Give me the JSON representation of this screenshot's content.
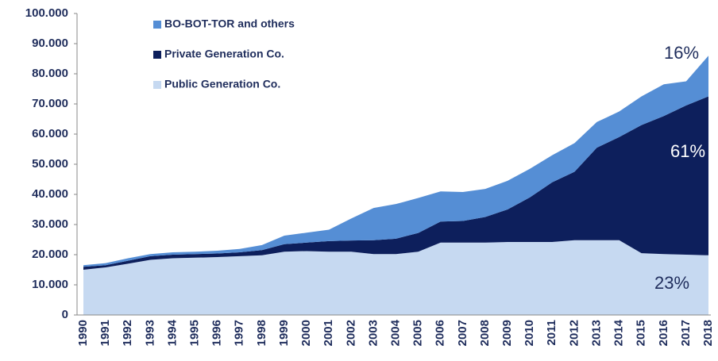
{
  "chart_data": {
    "type": "stacked_area",
    "categories": [
      "1990",
      "1991",
      "1992",
      "1993",
      "1994",
      "1995",
      "1996",
      "1997",
      "1998",
      "1999",
      "2000",
      "2001",
      "2002",
      "2003",
      "2004",
      "2005",
      "2006",
      "2007",
      "2008",
      "2009",
      "2010",
      "2011",
      "2012",
      "2013",
      "2014",
      "2015",
      "2016",
      "2017",
      "2018"
    ],
    "series": [
      {
        "name": "Public Generation Co.",
        "color": "#c6d9f1",
        "values": [
          15000,
          15800,
          17000,
          18300,
          18800,
          19000,
          19200,
          19500,
          19800,
          21000,
          21200,
          21000,
          21000,
          20200,
          20200,
          21000,
          24000,
          24000,
          24000,
          24200,
          24200,
          24200,
          24800,
          24800,
          24800,
          20500,
          20200,
          20000,
          19800
        ]
      },
      {
        "name": "Private Generation Co.",
        "color": "#0d1f5c",
        "values": [
          1000,
          700,
          1000,
          1200,
          1200,
          1200,
          1200,
          1300,
          1700,
          2500,
          2800,
          3500,
          3700,
          4600,
          5100,
          6200,
          7000,
          7200,
          8500,
          10800,
          14800,
          19800,
          22700,
          30700,
          34200,
          42500,
          45800,
          49500,
          52700
        ]
      },
      {
        "name": "BO-BOT-TOR and others",
        "color": "#558ed5",
        "values": [
          500,
          700,
          800,
          700,
          800,
          800,
          900,
          1100,
          1700,
          2800,
          3300,
          3800,
          7300,
          10700,
          11500,
          11600,
          10000,
          9600,
          9300,
          9500,
          9500,
          9000,
          9500,
          8500,
          8500,
          9500,
          10500,
          8000,
          13500
        ]
      }
    ],
    "ylim": [
      0,
      100000
    ],
    "yticks": [
      0,
      {
        "value": 10000,
        "label": "10.000"
      },
      {
        "value": 20000,
        "label": "20.000"
      },
      {
        "value": 30000,
        "label": "30.000"
      },
      {
        "value": 40000,
        "label": "40.000"
      },
      {
        "value": 50000,
        "label": "50.000"
      },
      {
        "value": 60000,
        "label": "60.000"
      },
      {
        "value": 70000,
        "label": "70.000"
      },
      {
        "value": 80000,
        "label": "80.000"
      },
      {
        "value": 90000,
        "label": "90.000"
      },
      {
        "value": 100000,
        "label": "100.000"
      }
    ],
    "annotations": [
      "16%",
      "61%",
      "23%"
    ],
    "legend": "upper left",
    "grid": false
  }
}
